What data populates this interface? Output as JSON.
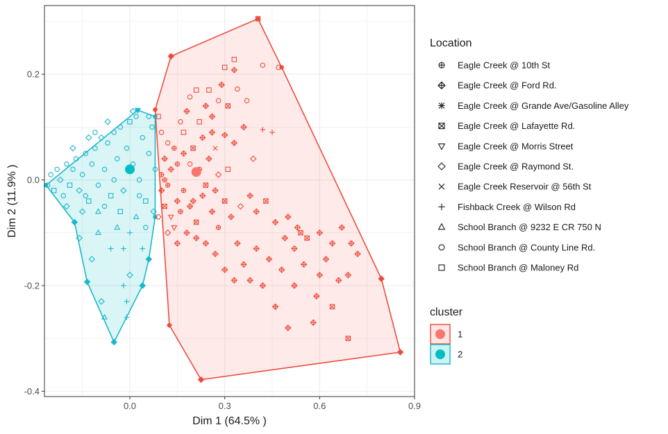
{
  "chart_data": {
    "type": "scatter",
    "title": "",
    "xlabel": "Dim 1 (64.5% )",
    "ylabel": "Dim 2 (11.9% )",
    "xlim": [
      -0.27,
      0.9
    ],
    "ylim": [
      -0.41,
      0.33
    ],
    "xticks": [
      0.0,
      0.3,
      0.6,
      0.9
    ],
    "xtick_labels": [
      "0.0",
      "0.3",
      "0.6",
      "0.9"
    ],
    "yticks": [
      0.2,
      0.0,
      -0.2,
      -0.4
    ],
    "ytick_labels": [
      "0.2",
      "0.0",
      "-0.2",
      "-0.4"
    ],
    "grid": true,
    "legend_placement": "right",
    "shape_legend": {
      "title": "Location",
      "entries": [
        {
          "label": "Eagle Creek @ 10th St",
          "shape": "circle-plus"
        },
        {
          "label": "Eagle Creek @ Ford Rd.",
          "shape": "diamond-plus"
        },
        {
          "label": "Eagle Creek @ Grande Ave/Gasoline Alley",
          "shape": "asterisk"
        },
        {
          "label": "Eagle Creek @ Lafayette Rd.",
          "shape": "square-x"
        },
        {
          "label": "Eagle Creek @ Morris Street",
          "shape": "triangle-down"
        },
        {
          "label": "Eagle Creek @ Raymond St.",
          "shape": "diamond"
        },
        {
          "label": "Eagle Creek Reservoir @ 56th St",
          "shape": "x"
        },
        {
          "label": "Fishback Creek @ Wilson Rd",
          "shape": "plus"
        },
        {
          "label": "School Branch @ 9232 E CR 750 N",
          "shape": "triangle-up"
        },
        {
          "label": "School Branch @ County Line Rd.",
          "shape": "circle"
        },
        {
          "label": "School Branch @ Maloney Rd",
          "shape": "square"
        }
      ]
    },
    "cluster_legend": {
      "title": "cluster",
      "entries": [
        {
          "label": "1",
          "color": "#F8766D",
          "line": "#EE4B3C"
        },
        {
          "label": "2",
          "color": "#00BFC4",
          "line": "#1BB7CB"
        }
      ]
    },
    "series": [
      {
        "name": "1",
        "color": "#F8766D",
        "hull": [
          [
            0.13,
            0.234
          ],
          [
            0.405,
            0.305
          ],
          [
            0.48,
            0.213
          ],
          [
            0.795,
            -0.187
          ],
          [
            0.855,
            -0.326
          ],
          [
            0.225,
            -0.378
          ],
          [
            0.125,
            -0.275
          ],
          [
            0.08,
            0.133
          ]
        ],
        "centroid": [
          0.21,
          0.015
        ],
        "points": [
          [
            0.13,
            0.234,
            "diamond-plus"
          ],
          [
            0.405,
            0.305,
            "square"
          ],
          [
            0.42,
            0.217,
            "circle"
          ],
          [
            0.47,
            0.213,
            "circle"
          ],
          [
            0.33,
            0.228,
            "square"
          ],
          [
            0.33,
            0.208,
            "diamond-plus"
          ],
          [
            0.3,
            0.213,
            "square"
          ],
          [
            0.34,
            0.172,
            "circle"
          ],
          [
            0.29,
            0.18,
            "diamond-plus"
          ],
          [
            0.25,
            0.17,
            "square"
          ],
          [
            0.28,
            0.15,
            "circle"
          ],
          [
            0.24,
            0.14,
            "diamond-plus"
          ],
          [
            0.21,
            0.17,
            "square"
          ],
          [
            0.19,
            0.157,
            "circle"
          ],
          [
            0.37,
            0.15,
            "circle"
          ],
          [
            0.31,
            0.14,
            "square-x"
          ],
          [
            0.26,
            0.12,
            "diamond-plus"
          ],
          [
            0.22,
            0.11,
            "square"
          ],
          [
            0.18,
            0.13,
            "diamond-plus"
          ],
          [
            0.16,
            0.11,
            "circle"
          ],
          [
            0.42,
            0.095,
            "plus"
          ],
          [
            0.45,
            0.09,
            "plus"
          ],
          [
            0.36,
            0.1,
            "diamond-plus"
          ],
          [
            0.33,
            0.07,
            "diamond-plus"
          ],
          [
            0.3,
            0.085,
            "diamond-plus"
          ],
          [
            0.27,
            0.06,
            "x"
          ],
          [
            0.25,
            0.04,
            "diamond-plus"
          ],
          [
            0.2,
            0.06,
            "square-x"
          ],
          [
            0.17,
            0.05,
            "diamond-plus"
          ],
          [
            0.15,
            0.03,
            "circle-plus"
          ],
          [
            0.13,
            0.02,
            "diamond-plus"
          ],
          [
            0.12,
            0.07,
            "circle"
          ],
          [
            0.11,
            0.04,
            "diamond-plus"
          ],
          [
            0.1,
            0.01,
            "circle-plus"
          ],
          [
            0.1,
            -0.02,
            "diamond-plus"
          ],
          [
            0.11,
            -0.05,
            "square-x"
          ],
          [
            0.13,
            -0.07,
            "triangle-down"
          ],
          [
            0.15,
            -0.04,
            "diamond-plus"
          ],
          [
            0.17,
            -0.02,
            "circle-plus"
          ],
          [
            0.19,
            -0.05,
            "diamond-plus"
          ],
          [
            0.21,
            -0.08,
            "square-x"
          ],
          [
            0.23,
            -0.03,
            "diamond-plus"
          ],
          [
            0.26,
            -0.06,
            "diamond-plus"
          ],
          [
            0.28,
            -0.09,
            "circle-plus"
          ],
          [
            0.3,
            -0.04,
            "square-x"
          ],
          [
            0.32,
            -0.07,
            "diamond-plus"
          ],
          [
            0.35,
            -0.05,
            "diamond"
          ],
          [
            0.38,
            -0.03,
            "diamond-plus"
          ],
          [
            0.4,
            -0.06,
            "diamond-plus"
          ],
          [
            0.43,
            -0.04,
            "square-x"
          ],
          [
            0.46,
            -0.08,
            "diamond-plus"
          ],
          [
            0.5,
            -0.07,
            "diamond-plus"
          ],
          [
            0.53,
            -0.09,
            "diamond-plus"
          ],
          [
            0.56,
            -0.11,
            "square-x"
          ],
          [
            0.6,
            -0.1,
            "diamond-plus"
          ],
          [
            0.64,
            -0.12,
            "diamond-plus"
          ],
          [
            0.67,
            -0.09,
            "diamond-plus"
          ],
          [
            0.7,
            -0.12,
            "diamond-plus"
          ],
          [
            0.72,
            -0.14,
            "diamond-plus"
          ],
          [
            0.69,
            -0.18,
            "diamond-plus"
          ],
          [
            0.64,
            -0.24,
            "square-x"
          ],
          [
            0.59,
            -0.22,
            "diamond-plus"
          ],
          [
            0.58,
            -0.27,
            "diamond-plus"
          ],
          [
            0.52,
            -0.2,
            "diamond-plus"
          ],
          [
            0.48,
            -0.17,
            "diamond-plus"
          ],
          [
            0.44,
            -0.15,
            "diamond-plus"
          ],
          [
            0.4,
            -0.13,
            "diamond-plus"
          ],
          [
            0.36,
            -0.16,
            "diamond-plus"
          ],
          [
            0.33,
            -0.19,
            "diamond-plus"
          ],
          [
            0.3,
            -0.17,
            "diamond-plus"
          ],
          [
            0.27,
            -0.14,
            "diamond-plus"
          ],
          [
            0.24,
            -0.12,
            "diamond-plus"
          ],
          [
            0.21,
            -0.11,
            "diamond-plus"
          ],
          [
            0.18,
            -0.1,
            "diamond-plus"
          ],
          [
            0.15,
            -0.12,
            "diamond-plus"
          ],
          [
            0.34,
            -0.12,
            "diamond-plus"
          ],
          [
            0.38,
            -0.19,
            "diamond-plus"
          ],
          [
            0.42,
            -0.2,
            "diamond-plus"
          ],
          [
            0.46,
            -0.24,
            "diamond-plus"
          ],
          [
            0.55,
            -0.16,
            "diamond-plus"
          ],
          [
            0.62,
            -0.15,
            "diamond-plus"
          ],
          [
            0.66,
            -0.19,
            "diamond-plus"
          ],
          [
            0.69,
            -0.3,
            "square-x"
          ],
          [
            0.795,
            -0.187,
            "diamond-plus"
          ],
          [
            0.855,
            -0.326,
            "diamond-plus"
          ],
          [
            0.225,
            -0.378,
            "diamond-plus"
          ],
          [
            0.125,
            -0.275,
            "plus"
          ],
          [
            0.17,
            0.09,
            "square"
          ],
          [
            0.19,
            0.03,
            "circle"
          ],
          [
            0.23,
            0.08,
            "diamond-plus"
          ],
          [
            0.14,
            -0.09,
            "triangle-down"
          ],
          [
            0.12,
            -0.01,
            "circle-plus"
          ],
          [
            0.28,
            0.01,
            "diamond"
          ],
          [
            0.31,
            0.02,
            "square"
          ],
          [
            0.24,
            -0.01,
            "square-x"
          ],
          [
            0.27,
            -0.02,
            "diamond-plus"
          ],
          [
            0.1,
            0.09,
            "circle"
          ],
          [
            0.09,
            0.12,
            "square"
          ],
          [
            0.09,
            -0.07,
            "diamond"
          ],
          [
            0.39,
            0.04,
            "diamond"
          ],
          [
            0.22,
            0.02,
            "circle-plus"
          ],
          [
            0.14,
            0.06,
            "circle-plus"
          ],
          [
            0.16,
            -0.06,
            "circle-plus"
          ],
          [
            0.11,
            0.0,
            "circle-plus"
          ],
          [
            0.2,
            -0.04,
            "diamond-plus"
          ],
          [
            0.26,
            0.09,
            "diamond-plus"
          ],
          [
            0.12,
            -0.1,
            "diamond"
          ],
          [
            0.52,
            -0.13,
            "diamond-plus"
          ],
          [
            0.49,
            -0.11,
            "diamond-plus"
          ],
          [
            0.6,
            -0.18,
            "diamond-plus"
          ],
          [
            0.5,
            -0.28,
            "diamond-plus"
          ],
          [
            0.54,
            -0.1,
            "square-x"
          ]
        ]
      },
      {
        "name": "2",
        "color": "#00BFC4",
        "hull": [
          [
            -0.265,
            -0.01
          ],
          [
            0.025,
            0.132
          ],
          [
            0.08,
            0.12
          ],
          [
            0.08,
            -0.07
          ],
          [
            0.06,
            -0.15
          ],
          [
            0.04,
            -0.2
          ],
          [
            -0.05,
            -0.307
          ],
          [
            -0.135,
            -0.193
          ],
          [
            -0.175,
            -0.08
          ]
        ],
        "centroid": [
          0.0,
          0.02
        ],
        "points": [
          [
            -0.26,
            -0.01,
            "circle"
          ],
          [
            -0.25,
            0.01,
            "circle"
          ],
          [
            -0.24,
            -0.02,
            "square"
          ],
          [
            -0.23,
            0.02,
            "circle"
          ],
          [
            -0.22,
            0.0,
            "diamond"
          ],
          [
            -0.21,
            -0.03,
            "circle"
          ],
          [
            -0.2,
            0.03,
            "circle"
          ],
          [
            -0.19,
            -0.01,
            "square"
          ],
          [
            -0.18,
            0.02,
            "circle"
          ],
          [
            -0.17,
            0.04,
            "circle"
          ],
          [
            -0.16,
            -0.02,
            "diamond"
          ],
          [
            -0.15,
            0.01,
            "circle"
          ],
          [
            -0.14,
            0.05,
            "circle"
          ],
          [
            -0.13,
            -0.04,
            "square"
          ],
          [
            -0.12,
            0.03,
            "circle"
          ],
          [
            -0.11,
            0.06,
            "circle"
          ],
          [
            -0.1,
            -0.01,
            "circle"
          ],
          [
            -0.09,
            0.08,
            "diamond"
          ],
          [
            -0.08,
            0.02,
            "circle"
          ],
          [
            -0.07,
            0.07,
            "circle"
          ],
          [
            -0.06,
            -0.03,
            "square"
          ],
          [
            -0.05,
            0.09,
            "circle"
          ],
          [
            -0.04,
            0.04,
            "circle"
          ],
          [
            -0.03,
            0.1,
            "circle"
          ],
          [
            -0.02,
            -0.02,
            "diamond"
          ],
          [
            -0.01,
            0.06,
            "circle"
          ],
          [
            0.0,
            0.11,
            "square"
          ],
          [
            0.01,
            0.03,
            "circle"
          ],
          [
            0.02,
            0.12,
            "circle"
          ],
          [
            0.025,
            0.132,
            "triangle-down"
          ],
          [
            0.03,
            0.0,
            "circle"
          ],
          [
            0.04,
            0.08,
            "circle"
          ],
          [
            0.05,
            -0.04,
            "square"
          ],
          [
            0.06,
            0.05,
            "circle"
          ],
          [
            0.07,
            0.1,
            "circle"
          ],
          [
            0.075,
            -0.06,
            "diamond"
          ],
          [
            0.08,
            0.02,
            "circle"
          ],
          [
            -0.175,
            -0.08,
            "diamond"
          ],
          [
            -0.16,
            -0.11,
            "diamond"
          ],
          [
            -0.135,
            -0.193,
            "diamond"
          ],
          [
            -0.12,
            -0.15,
            "diamond"
          ],
          [
            -0.1,
            -0.1,
            "triangle-up"
          ],
          [
            -0.09,
            -0.23,
            "diamond"
          ],
          [
            -0.08,
            -0.26,
            "triangle-up"
          ],
          [
            -0.05,
            -0.307,
            "diamond"
          ],
          [
            -0.06,
            -0.13,
            "plus"
          ],
          [
            -0.02,
            -0.13,
            "plus"
          ],
          [
            0.0,
            -0.1,
            "plus"
          ],
          [
            0.04,
            -0.13,
            "plus"
          ],
          [
            0.06,
            -0.15,
            "diamond"
          ],
          [
            0.04,
            -0.2,
            "diamond"
          ],
          [
            0.0,
            -0.18,
            "diamond"
          ],
          [
            -0.02,
            -0.2,
            "plus"
          ],
          [
            -0.01,
            -0.23,
            "plus"
          ],
          [
            -0.01,
            -0.26,
            "plus"
          ],
          [
            -0.04,
            -0.09,
            "triangle-up"
          ],
          [
            -0.15,
            -0.06,
            "diamond"
          ],
          [
            -0.2,
            -0.05,
            "diamond"
          ],
          [
            -0.1,
            -0.06,
            "triangle-up"
          ],
          [
            0.02,
            -0.07,
            "triangle-up"
          ],
          [
            0.05,
            -0.09,
            "circle"
          ],
          [
            -0.03,
            -0.06,
            "square"
          ],
          [
            -0.13,
            0.08,
            "diamond"
          ],
          [
            -0.11,
            0.09,
            "circle"
          ],
          [
            -0.07,
            0.11,
            "diamond"
          ],
          [
            0.01,
            0.13,
            "diamond"
          ],
          [
            0.06,
            0.12,
            "circle"
          ],
          [
            0.03,
            -0.03,
            "circle"
          ],
          [
            -0.05,
            0.0,
            "circle"
          ],
          [
            -0.08,
            -0.05,
            "circle"
          ],
          [
            -0.14,
            -0.03,
            "circle"
          ],
          [
            -0.18,
            0.06,
            "diamond"
          ]
        ]
      }
    ]
  }
}
